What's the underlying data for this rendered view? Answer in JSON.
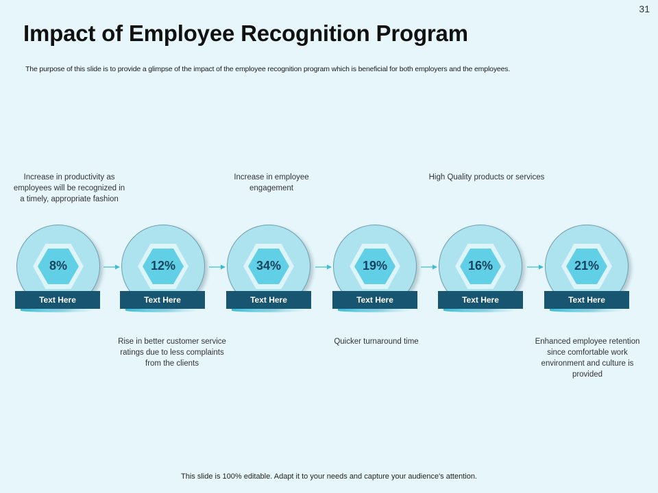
{
  "slide_number": "31",
  "title": "Impact of Employee Recognition Program",
  "subtitle": "The purpose of this slide is to provide a glimpse of the impact of the employee recognition program which is beneficial for both employers and the employees.",
  "steps": [
    {
      "percent": "8%",
      "label": "Text Here",
      "description": "Increase in productivity as employees will be recognized in a timely, appropriate fashion"
    },
    {
      "percent": "12%",
      "label": "Text Here",
      "description": "Rise in better customer service ratings due to less complaints from the clients"
    },
    {
      "percent": "34%",
      "label": "Text Here",
      "description": "Increase in employee engagement"
    },
    {
      "percent": "19%",
      "label": "Text Here",
      "description": "Quicker turnaround time"
    },
    {
      "percent": "16%",
      "label": "Text Here",
      "description": "High Quality products or services"
    },
    {
      "percent": "21%",
      "label": "Text Here",
      "description": "Enhanced employee retention since comfortable work environment and culture is provided"
    }
  ],
  "footer": "This slide is 100% editable. Adapt it to your needs and capture your audience's attention.",
  "colors": {
    "background": "#e6f6fa",
    "circle": "#ace3ef",
    "hexagon": "#61cfe6",
    "label_bar": "#185570",
    "arrow": "#3cbcd8"
  }
}
